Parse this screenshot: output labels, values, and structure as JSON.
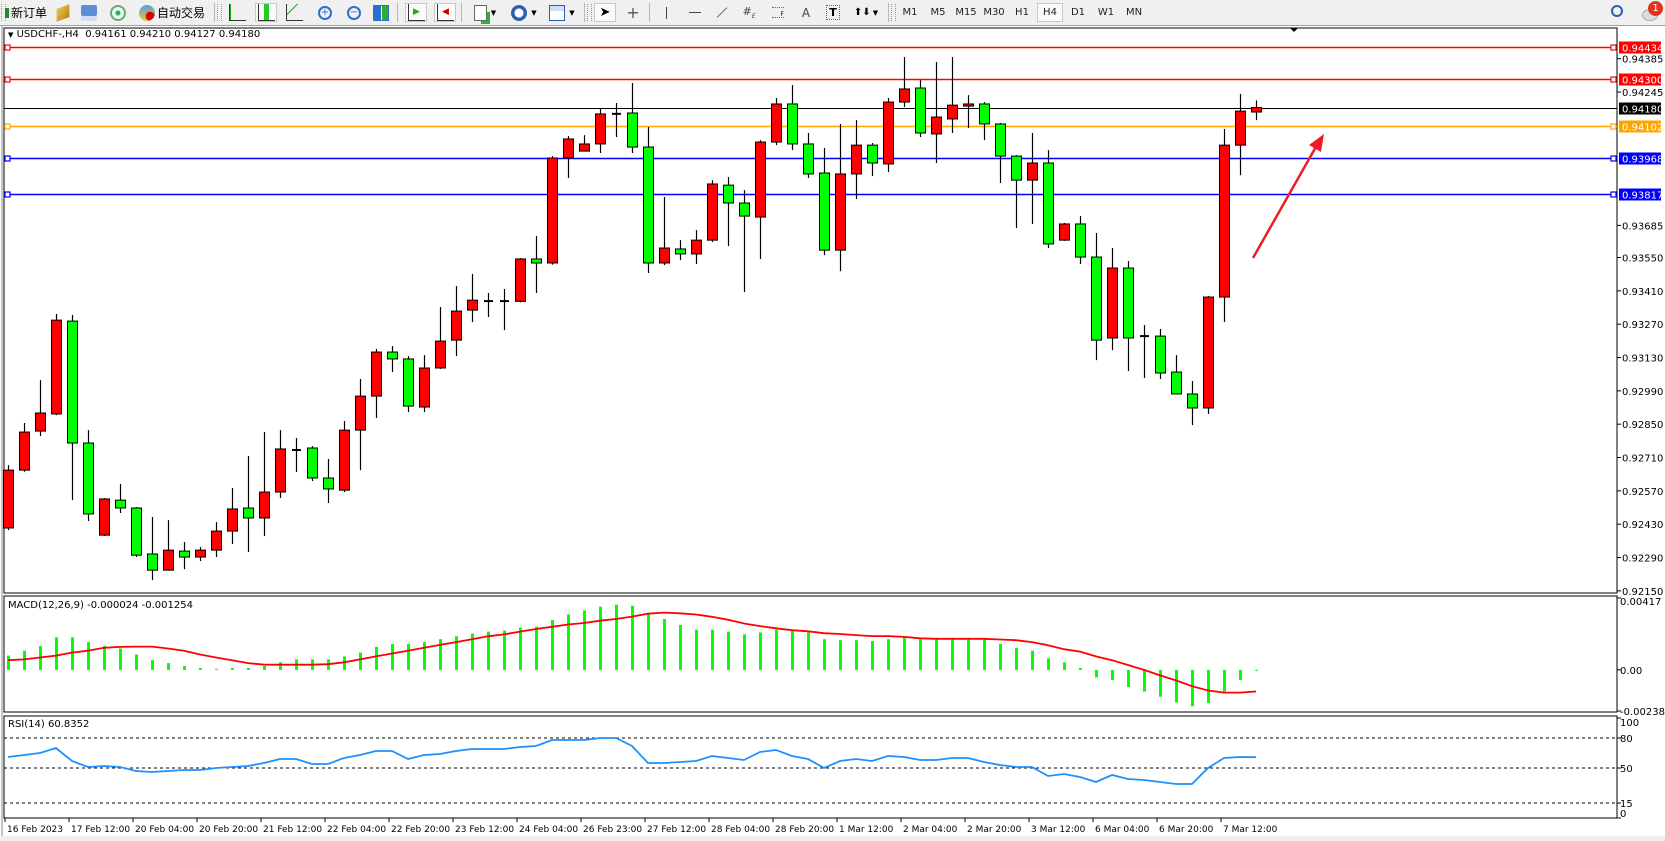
{
  "toolbar": {
    "new_order": "新订单",
    "auto_trading": "自动交易",
    "timeframes": [
      "M1",
      "M5",
      "M15",
      "M30",
      "H1",
      "H4",
      "D1",
      "W1",
      "MN"
    ],
    "active_timeframe": "H4",
    "notification_count": "1",
    "icons": [
      "new-order-icon",
      "strategy-tester-icon",
      "data-window-icon",
      "signals-icon",
      "auto-trading-icon",
      "bar-chart-icon",
      "candlestick-icon",
      "line-chart-icon",
      "zoom-in-icon",
      "zoom-out-icon",
      "tile-windows-icon",
      "chart-shift-icon",
      "autoscroll-icon",
      "new-chart-icon",
      "periods-icon",
      "templates-icon",
      "cursor-icon",
      "crosshair-icon",
      "vertical-line-icon",
      "horizontal-line-icon",
      "trendline-icon",
      "equidistant-channel-icon",
      "fibonacci-icon",
      "text-icon",
      "text-label-icon",
      "arrows-icon",
      "search-icon",
      "notification-icon"
    ]
  },
  "header": {
    "symbol": "USDCHF-,H4",
    "ohlc": "0.94161 0.94210 0.94127 0.94180"
  },
  "macd_label": "MACD(12,26,9) -0.000024 -0.001254",
  "rsi_label": "RSI(14) 60.8352",
  "colors": {
    "bull": "#ff0000",
    "bear": "#00ff00",
    "resistance": "#ff0000",
    "pivot": "#ffa500",
    "support": "#0000ff",
    "bid": "#000000",
    "signal": "#ff0000",
    "rsi": "#1e90ff",
    "arrow": "#ee1c25"
  },
  "chart_data": [
    {
      "type": "candlestick",
      "title": "USDCHF-,H4",
      "ylim": [
        0.92141,
        0.94514
      ],
      "y_ticks": [
        "0.94385",
        "0.94245",
        "0.93685",
        "0.93550",
        "0.93410",
        "0.93270",
        "0.93130",
        "0.92990",
        "0.92850",
        "0.92710",
        "0.92570",
        "0.92430",
        "0.92290",
        "0.92150"
      ],
      "x_labels": [
        "16 Feb 2023",
        "17 Feb 12:00",
        "20 Feb 04:00",
        "20 Feb 20:00",
        "21 Feb 12:00",
        "22 Feb 04:00",
        "22 Feb 20:00",
        "23 Feb 12:00",
        "24 Feb 04:00",
        "26 Feb 23:00",
        "27 Feb 12:00",
        "28 Feb 04:00",
        "28 Feb 20:00",
        "1 Mar 12:00",
        "2 Mar 04:00",
        "2 Mar 20:00",
        "3 Mar 12:00",
        "6 Mar 04:00",
        "6 Mar 20:00",
        "7 Mar 12:00"
      ],
      "x_label_every_bars": 4,
      "hlines": [
        {
          "price": "0.94434",
          "color": "#ff0000"
        },
        {
          "price": "0.94300",
          "color": "#ff0000"
        },
        {
          "price": "0.94180",
          "color": "#000000",
          "bid": true
        },
        {
          "price": "0.94102",
          "color": "#ffa500"
        },
        {
          "price": "0.93968",
          "color": "#0000ff"
        },
        {
          "price": "0.93817",
          "color": "#0000ff"
        }
      ],
      "ohlc": [
        [
          0.92414,
          0.92678,
          0.92405,
          0.92657
        ],
        [
          0.92657,
          0.92855,
          0.9265,
          0.92817
        ],
        [
          0.92821,
          0.93035,
          0.928,
          0.92897
        ],
        [
          0.92893,
          0.93313,
          0.92888,
          0.93287
        ],
        [
          0.93283,
          0.93309,
          0.92531,
          0.92771
        ],
        [
          0.92771,
          0.92825,
          0.92443,
          0.92473
        ],
        [
          0.92384,
          0.9254,
          0.9238,
          0.92536
        ],
        [
          0.92531,
          0.92599,
          0.92477,
          0.92498
        ],
        [
          0.92498,
          0.92502,
          0.92292,
          0.923
        ],
        [
          0.92305,
          0.9246,
          0.92195,
          0.92237
        ],
        [
          0.92237,
          0.92447,
          0.92235,
          0.92321
        ],
        [
          0.92317,
          0.92355,
          0.92241,
          0.92292
        ],
        [
          0.92292,
          0.92334,
          0.92275,
          0.92321
        ],
        [
          0.92321,
          0.92439,
          0.92292,
          0.92401
        ],
        [
          0.92401,
          0.92582,
          0.92347,
          0.92494
        ],
        [
          0.92498,
          0.92716,
          0.92313,
          0.92456
        ],
        [
          0.92456,
          0.92817,
          0.9238,
          0.92565
        ],
        [
          0.92565,
          0.92825,
          0.9254,
          0.92746
        ],
        [
          0.92741,
          0.92792,
          0.92649,
          0.92742
        ],
        [
          0.9275,
          0.92758,
          0.92611,
          0.92624
        ],
        [
          0.92624,
          0.92704,
          0.92519,
          0.92578
        ],
        [
          0.92573,
          0.92863,
          0.92565,
          0.92825
        ],
        [
          0.92825,
          0.9304,
          0.92657,
          0.92968
        ],
        [
          0.92968,
          0.93166,
          0.92876,
          0.93153
        ],
        [
          0.93153,
          0.93178,
          0.93069,
          0.93124
        ],
        [
          0.93124,
          0.93136,
          0.92901,
          0.92926
        ],
        [
          0.92922,
          0.9314,
          0.92901,
          0.93086
        ],
        [
          0.93086,
          0.93342,
          0.93082,
          0.93199
        ],
        [
          0.93203,
          0.9343,
          0.93136,
          0.93325
        ],
        [
          0.93329,
          0.93481,
          0.93279,
          0.93371
        ],
        [
          0.93366,
          0.93401,
          0.933,
          0.93368
        ],
        [
          0.93368,
          0.93418,
          0.93245,
          0.93366
        ],
        [
          0.93366,
          0.93548,
          0.93362,
          0.93544
        ],
        [
          0.93544,
          0.9364,
          0.93401,
          0.93527
        ],
        [
          0.93527,
          0.93976,
          0.9352,
          0.93968
        ],
        [
          0.93968,
          0.9406,
          0.93884,
          0.94048
        ],
        [
          0.93997,
          0.94064,
          0.93995,
          0.94027
        ],
        [
          0.94027,
          0.94178,
          0.93989,
          0.94153
        ],
        [
          0.94153,
          0.94199,
          0.94056,
          0.94154
        ],
        [
          0.94157,
          0.94283,
          0.93989,
          0.94014
        ],
        [
          0.94014,
          0.94098,
          0.93485,
          0.93527
        ],
        [
          0.93527,
          0.93804,
          0.93518,
          0.9359
        ],
        [
          0.93586,
          0.93623,
          0.93539,
          0.93565
        ],
        [
          0.93565,
          0.93665,
          0.93523,
          0.93623
        ],
        [
          0.93623,
          0.93875,
          0.93615,
          0.93859
        ],
        [
          0.93854,
          0.93888,
          0.93598,
          0.93779
        ],
        [
          0.93779,
          0.93833,
          0.93405,
          0.93724
        ],
        [
          0.9372,
          0.94043,
          0.93544,
          0.94035
        ],
        [
          0.94035,
          0.9422,
          0.94022,
          0.94195
        ],
        [
          0.94195,
          0.94274,
          0.94001,
          0.94027
        ],
        [
          0.94027,
          0.94073,
          0.93884,
          0.93901
        ],
        [
          0.93905,
          0.9401,
          0.9356,
          0.93581
        ],
        [
          0.93581,
          0.94111,
          0.93493,
          0.93901
        ],
        [
          0.93901,
          0.94127,
          0.93796,
          0.94022
        ],
        [
          0.94022,
          0.94031,
          0.93892,
          0.93947
        ],
        [
          0.93943,
          0.9422,
          0.93909,
          0.94203
        ],
        [
          0.94203,
          0.94392,
          0.94182,
          0.94258
        ],
        [
          0.94262,
          0.94295,
          0.94056,
          0.94073
        ],
        [
          0.94069,
          0.94371,
          0.93947,
          0.9414
        ],
        [
          0.94132,
          0.94392,
          0.94073,
          0.9419
        ],
        [
          0.94186,
          0.94232,
          0.94094,
          0.94195
        ],
        [
          0.94195,
          0.94203,
          0.94043,
          0.94111
        ],
        [
          0.94111,
          0.94115,
          0.93863,
          0.93976
        ],
        [
          0.93976,
          0.9398,
          0.93674,
          0.93875
        ],
        [
          0.93875,
          0.94073,
          0.93691,
          0.93947
        ],
        [
          0.93947,
          0.94001,
          0.9359,
          0.93607
        ],
        [
          0.93623,
          0.93695,
          0.9362,
          0.93691
        ],
        [
          0.93691,
          0.93724,
          0.93523,
          0.93552
        ],
        [
          0.93552,
          0.93653,
          0.93119,
          0.93203
        ],
        [
          0.93212,
          0.9359,
          0.93161,
          0.93506
        ],
        [
          0.93506,
          0.93535,
          0.93073,
          0.93212
        ],
        [
          0.9322,
          0.93266,
          0.93044,
          0.9322
        ],
        [
          0.9322,
          0.9325,
          0.9304,
          0.93065
        ],
        [
          0.93069,
          0.9314,
          0.92975,
          0.92977
        ],
        [
          0.92977,
          0.93031,
          0.92846,
          0.92918
        ],
        [
          0.92918,
          0.93388,
          0.92893,
          0.93384
        ],
        [
          0.93384,
          0.9409,
          0.93279,
          0.94022
        ],
        [
          0.94022,
          0.94237,
          0.93896,
          0.94165
        ],
        [
          0.94161,
          0.9421,
          0.94127,
          0.9418
        ]
      ]
    },
    {
      "type": "bar+line",
      "title": "MACD(12,26,9)",
      "ylim": [
        -0.002387,
        0.00417
      ],
      "y_ticks": [
        "0.00417",
        "0.00",
        "-0.002387"
      ],
      "series": [
        {
          "name": "MACD",
          "values": [
            0.00083,
            0.00111,
            0.00139,
            0.00189,
            0.00189,
            0.00161,
            0.00139,
            0.00124,
            0.00089,
            0.00056,
            0.00039,
            0.00022,
            0.00011,
            6e-05,
            0.00011,
            0.00011,
            0.00022,
            0.00044,
            0.00061,
            0.00061,
            0.00061,
            0.00078,
            0.001,
            0.00133,
            0.0015,
            0.0015,
            0.00161,
            0.00178,
            0.00195,
            0.00211,
            0.00222,
            0.00228,
            0.00245,
            0.0025,
            0.00289,
            0.00322,
            0.00345,
            0.00367,
            0.00378,
            0.00372,
            0.00328,
            0.00295,
            0.00261,
            0.00233,
            0.00233,
            0.00222,
            0.00206,
            0.00217,
            0.00233,
            0.00228,
            0.00217,
            0.00178,
            0.00172,
            0.00172,
            0.00167,
            0.00178,
            0.00189,
            0.00183,
            0.00178,
            0.00178,
            0.00178,
            0.00178,
            0.0015,
            0.00128,
            0.00111,
            0.00067,
            0.00044,
            0.00011,
            -0.00044,
            -0.00059,
            -0.001,
            -0.00126,
            -0.00156,
            -0.00189,
            -0.00211,
            -0.00193,
            -0.00126,
            -0.00059,
            -2.4e-05
          ]
        },
        {
          "name": "Signal",
          "values": [
            0.00056,
            0.00061,
            0.00072,
            0.00083,
            0.001,
            0.00111,
            0.00128,
            0.00133,
            0.00135,
            0.00135,
            0.00124,
            0.00111,
            0.00089,
            0.00072,
            0.00056,
            0.00039,
            0.0003,
            0.0003,
            0.0003,
            0.0003,
            0.00033,
            0.00044,
            0.00061,
            0.00078,
            0.00095,
            0.00111,
            0.00128,
            0.00145,
            0.00161,
            0.00178,
            0.00195,
            0.00206,
            0.00222,
            0.00237,
            0.0025,
            0.00263,
            0.00272,
            0.00285,
            0.00295,
            0.00309,
            0.00326,
            0.00332,
            0.00328,
            0.00321,
            0.00308,
            0.00291,
            0.00269,
            0.00254,
            0.00241,
            0.0023,
            0.00224,
            0.00213,
            0.00208,
            0.00202,
            0.00196,
            0.00196,
            0.00191,
            0.00183,
            0.0018,
            0.0018,
            0.0018,
            0.0018,
            0.00176,
            0.00172,
            0.00161,
            0.00143,
            0.0012,
            0.00106,
            0.00078,
            0.00056,
            0.00028,
            0,
            -0.00032,
            -0.00061,
            -0.00095,
            -0.0012,
            -0.00132,
            -0.00132,
            -0.001254
          ]
        }
      ]
    },
    {
      "type": "line",
      "title": "RSI(14)",
      "ylim": [
        0,
        100
      ],
      "y_ticks": [
        "100",
        "80",
        "50",
        "15",
        "0"
      ],
      "levels": [
        80,
        50,
        15
      ],
      "values": [
        61,
        63,
        65,
        70,
        57,
        51,
        52,
        51,
        47,
        46,
        47,
        48,
        48,
        50,
        51,
        52,
        55,
        59,
        59,
        54,
        54,
        60,
        63,
        67,
        67,
        59,
        63,
        64,
        67,
        69,
        69,
        69,
        71,
        72,
        78,
        78,
        78,
        80,
        80,
        72,
        55,
        55,
        56,
        57,
        62,
        60,
        58,
        66,
        68,
        62,
        59,
        50,
        57,
        59,
        57,
        62,
        61,
        58,
        58,
        60,
        60,
        56,
        53,
        51,
        51,
        42,
        44,
        41,
        36,
        43,
        39,
        38,
        36,
        34,
        34,
        50,
        60,
        61,
        60.8352
      ]
    }
  ]
}
